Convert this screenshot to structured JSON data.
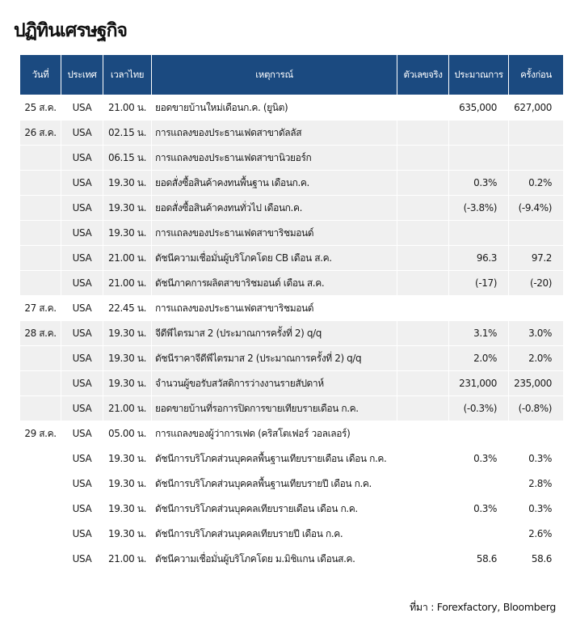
{
  "title": "ปฏิทินเศรษฐกิจ",
  "columns": [
    "วันที่",
    "ประเทศ",
    "เวลาไทย",
    "เหตุการณ์",
    "ตัวเลขจริง",
    "ประมาณการ",
    "ครั้งก่อน"
  ],
  "header_color": "#1b4a80",
  "rows": [
    {
      "date": "25 ส.ค.",
      "country": "USA",
      "time": "21.00 น.",
      "event": "ยอดขายบ้านใหม่เดือนก.ค. (ยูนิต)",
      "actual": "",
      "forecast": "635,000",
      "previous": "627,000",
      "shade": false
    },
    {
      "date": "26 ส.ค.",
      "country": "USA",
      "time": "02.15 น.",
      "event": "การแถลงของประธานเฟดสาขาดัลลัส",
      "actual": "",
      "forecast": "",
      "previous": "",
      "shade": true
    },
    {
      "date": "",
      "country": "USA",
      "time": "06.15 น.",
      "event": "การแถลงของประธานเฟดสาขานิวยอร์ก",
      "actual": "",
      "forecast": "",
      "previous": "",
      "shade": true
    },
    {
      "date": "",
      "country": "USA",
      "time": "19.30 น.",
      "event": "ยอดสั่งซื้อสินค้าคงทนพื้นฐาน เดือนก.ค.",
      "actual": "",
      "forecast": "0.3%",
      "previous": "0.2%",
      "shade": true
    },
    {
      "date": "",
      "country": "USA",
      "time": "19.30 น.",
      "event": "ยอดสั่งซื้อสินค้าคงทนทั่วไป เดือนก.ค.",
      "actual": "",
      "forecast": "(-3.8%)",
      "previous": "(-9.4%)",
      "shade": true
    },
    {
      "date": "",
      "country": "USA",
      "time": "19.30 น.",
      "event": "การแถลงของประธานเฟดสาขาริชมอนด์",
      "actual": "",
      "forecast": "",
      "previous": "",
      "shade": true
    },
    {
      "date": "",
      "country": "USA",
      "time": "21.00 น.",
      "event": "ดัชนีความเชื่อมั่นผู้บริโภคโดย CB เดือน ส.ค.",
      "actual": "",
      "forecast": "96.3",
      "previous": "97.2",
      "shade": true
    },
    {
      "date": "",
      "country": "USA",
      "time": "21.00 น.",
      "event": "ดัชนีภาคการผลิตสาขาริชมอนด์ เดือน ส.ค.",
      "actual": "",
      "forecast": "(-17)",
      "previous": "(-20)",
      "shade": true
    },
    {
      "date": "27 ส.ค.",
      "country": "USA",
      "time": "22.45 น.",
      "event": "การแถลงของประธานเฟดสาขาริชมอนด์",
      "actual": "",
      "forecast": "",
      "previous": "",
      "shade": false
    },
    {
      "date": "28 ส.ค.",
      "country": "USA",
      "time": "19.30 น.",
      "event": "จีดีพีไตรมาส 2 (ประมาณการครั้งที่ 2) q/q",
      "actual": "",
      "forecast": "3.1%",
      "previous": "3.0%",
      "shade": true
    },
    {
      "date": "",
      "country": "USA",
      "time": "19.30 น.",
      "event": "ดัชนีราคาจีดีพีไตรมาส 2 (ประมาณการครั้งที่ 2) q/q",
      "actual": "",
      "forecast": "2.0%",
      "previous": "2.0%",
      "shade": true
    },
    {
      "date": "",
      "country": "USA",
      "time": "19.30 น.",
      "event": "จำนวนผู้ขอรับสวัสดิการว่างงานรายสัปดาห์",
      "actual": "",
      "forecast": "231,000",
      "previous": "235,000",
      "shade": true
    },
    {
      "date": "",
      "country": "USA",
      "time": "21.00 น.",
      "event": " ยอดขายบ้านที่รอการปิดการขายเทียบรายเดือน ก.ค.",
      "actual": "",
      "forecast": "(-0.3%)",
      "previous": "(-0.8%)",
      "shade": true
    },
    {
      "date": "29 ส.ค.",
      "country": "USA",
      "time": "05.00 น.",
      "event": "การแถลงของผู้ว่าการเฟด (คริสโตเฟอร์ วอลเลอร์)",
      "actual": "",
      "forecast": "",
      "previous": "",
      "shade": false
    },
    {
      "date": "",
      "country": "USA",
      "time": "19.30 น.",
      "event": "ดัชนีการบริโภคส่วนบุคคลพื้นฐานเทียบรายเดือน เดือน ก.ค.",
      "actual": "",
      "forecast": "0.3%",
      "previous": "0.3%",
      "shade": false
    },
    {
      "date": "",
      "country": "USA",
      "time": "19.30 น.",
      "event": "ดัชนีการบริโภคส่วนบุคคลพื้นฐานเทียบรายปี เดือน ก.ค.",
      "actual": "",
      "forecast": "",
      "previous": "2.8%",
      "shade": false
    },
    {
      "date": "",
      "country": "USA",
      "time": "19.30 น.",
      "event": "ดัชนีการบริโภคส่วนบุคคลเทียบรายเดือน เดือน ก.ค.",
      "actual": "",
      "forecast": "0.3%",
      "previous": "0.3%",
      "shade": false
    },
    {
      "date": "",
      "country": "USA",
      "time": "19.30 น.",
      "event": "ดัชนีการบริโภคส่วนบุคคลเทียบรายปี เดือน ก.ค.",
      "actual": "",
      "forecast": "",
      "previous": "2.6%",
      "shade": false
    },
    {
      "date": "",
      "country": "USA",
      "time": "21.00 น.",
      "event": "ดัชนีความเชื่อมั่นผู้บริโภคโดย ม.มิชิแกน เดือนส.ค.",
      "actual": "",
      "forecast": "58.6",
      "previous": "58.6",
      "shade": false
    }
  ],
  "source": "ที่มา : Forexfactory, Bloomberg"
}
